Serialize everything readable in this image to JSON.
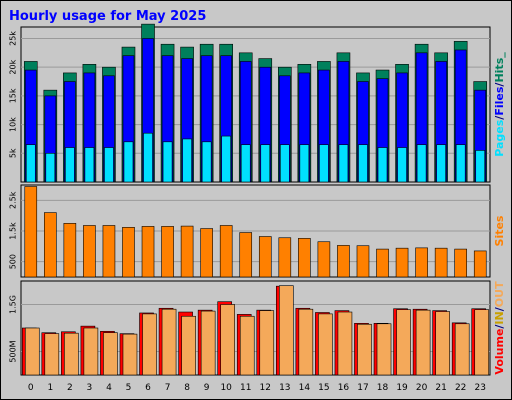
{
  "chart_data": [
    {
      "type": "bar",
      "title": "Hourly usage for May 2025",
      "categories": [
        "0",
        "1",
        "2",
        "3",
        "4",
        "5",
        "6",
        "7",
        "8",
        "9",
        "10",
        "11",
        "12",
        "13",
        "14",
        "15",
        "16",
        "17",
        "18",
        "19",
        "20",
        "21",
        "22",
        "23"
      ],
      "ylim": [
        0,
        27000
      ],
      "yticks": [
        "5k",
        "10k",
        "15k",
        "20k",
        "25k"
      ],
      "ytick_values": [
        5000,
        10000,
        15000,
        20000,
        25000
      ],
      "grid": true,
      "legend": "right",
      "series": [
        {
          "name": "Hits",
          "color": "#00805c",
          "values": [
            21000,
            16000,
            19000,
            20500,
            20000,
            23500,
            27500,
            24000,
            23500,
            24000,
            24000,
            22500,
            21500,
            20000,
            20500,
            21000,
            22500,
            19000,
            19500,
            20500,
            24000,
            22500,
            24500,
            17500
          ]
        },
        {
          "name": "Files",
          "color": "#0000ff",
          "values": [
            19500,
            15000,
            17500,
            19000,
            18500,
            22000,
            25000,
            22000,
            21500,
            22000,
            22000,
            21000,
            20000,
            18500,
            19000,
            19500,
            21000,
            17500,
            18000,
            19000,
            22500,
            21000,
            23000,
            16000
          ]
        },
        {
          "name": "Pages",
          "color": "#00e0ff",
          "values": [
            6500,
            5000,
            6000,
            6000,
            6000,
            7000,
            8500,
            7000,
            7500,
            7000,
            8000,
            6500,
            6500,
            6500,
            6500,
            6500,
            6500,
            6500,
            6000,
            6000,
            6500,
            6500,
            6500,
            5500
          ]
        }
      ],
      "legend_text": [
        {
          "label": "Pages",
          "color": "#00e0ff"
        },
        {
          "label": "/",
          "color": "#000080"
        },
        {
          "label": "Files",
          "color": "#0000ff"
        },
        {
          "label": "/",
          "color": "#000080"
        },
        {
          "label": "Hits_",
          "color": "#00805c"
        }
      ]
    },
    {
      "type": "bar",
      "categories": [
        "0",
        "1",
        "2",
        "3",
        "4",
        "5",
        "6",
        "7",
        "8",
        "9",
        "10",
        "11",
        "12",
        "13",
        "14",
        "15",
        "16",
        "17",
        "18",
        "19",
        "20",
        "21",
        "22",
        "23"
      ],
      "ylim": [
        0,
        3000
      ],
      "yticks": [
        "500",
        "1.5k",
        "2.5k"
      ],
      "ytick_values": [
        500,
        1500,
        2500
      ],
      "grid": true,
      "series": [
        {
          "name": "Sites",
          "color": "#ff8000",
          "values": [
            2950,
            2100,
            1750,
            1680,
            1680,
            1620,
            1650,
            1650,
            1660,
            1580,
            1680,
            1450,
            1320,
            1280,
            1260,
            1150,
            1030,
            1020,
            910,
            940,
            950,
            940,
            910,
            850
          ]
        }
      ],
      "legend_text": [
        {
          "label": "Sites",
          "color": "#ff8000"
        }
      ]
    },
    {
      "type": "bar",
      "categories": [
        "0",
        "1",
        "2",
        "3",
        "4",
        "5",
        "6",
        "7",
        "8",
        "9",
        "10",
        "11",
        "12",
        "13",
        "14",
        "15",
        "16",
        "17",
        "18",
        "19",
        "20",
        "21",
        "22",
        "23"
      ],
      "ylim": [
        0,
        2000
      ],
      "yticks": [
        "500M",
        "1.5G"
      ],
      "ytick_values": [
        500,
        1500
      ],
      "grid": true,
      "series": [
        {
          "name": "Volume",
          "color": "#ff0000",
          "values": [
            1000,
            900,
            920,
            1040,
            930,
            880,
            1320,
            1420,
            1340,
            1380,
            1560,
            1290,
            1380,
            1890,
            1420,
            1330,
            1370,
            1100,
            1100,
            1410,
            1400,
            1370,
            1110,
            1410
          ]
        },
        {
          "name": "IN",
          "color": "#f4a95a",
          "values": [
            1000,
            880,
            890,
            1000,
            900,
            870,
            1300,
            1400,
            1250,
            1360,
            1500,
            1250,
            1370,
            1900,
            1400,
            1300,
            1340,
            1080,
            1090,
            1390,
            1380,
            1350,
            1090,
            1390
          ]
        }
      ],
      "legend_text": [
        {
          "label": "Volume",
          "color": "#ff0000"
        },
        {
          "label": "/",
          "color": "#000080"
        },
        {
          "label": "IN",
          "color": "#c8a000"
        },
        {
          "label": "/",
          "color": "#000080"
        },
        {
          "label": "OUT",
          "color": "#f4a95a"
        }
      ]
    }
  ]
}
